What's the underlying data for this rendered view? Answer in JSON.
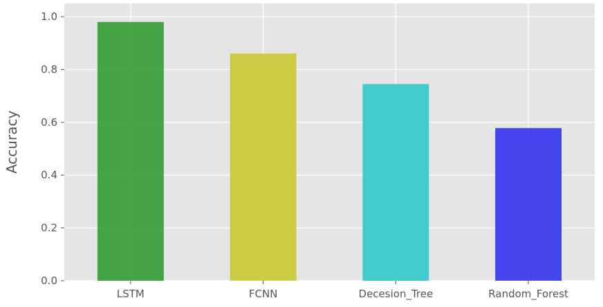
{
  "chart_data": {
    "type": "bar",
    "title": "",
    "xlabel": "",
    "ylabel": "Accuracy",
    "categories": [
      "LSTM",
      "FCNN",
      "Decesion_Tree",
      "Random_Forest"
    ],
    "values": [
      0.98,
      0.86,
      0.745,
      0.578
    ],
    "colors": [
      "#2e9a2e",
      "#c6c62e",
      "#2ec6c6",
      "#2e2ef0"
    ],
    "ylim": [
      0,
      1.05
    ],
    "yticks": [
      0.0,
      0.2,
      0.4,
      0.6,
      0.8,
      1.0
    ],
    "ytick_labels": [
      "0.0",
      "0.2",
      "0.4",
      "0.6",
      "0.8",
      "1.0"
    ],
    "grid": true,
    "background_color": "#e5e5e5",
    "grid_color": "#ffffff"
  }
}
